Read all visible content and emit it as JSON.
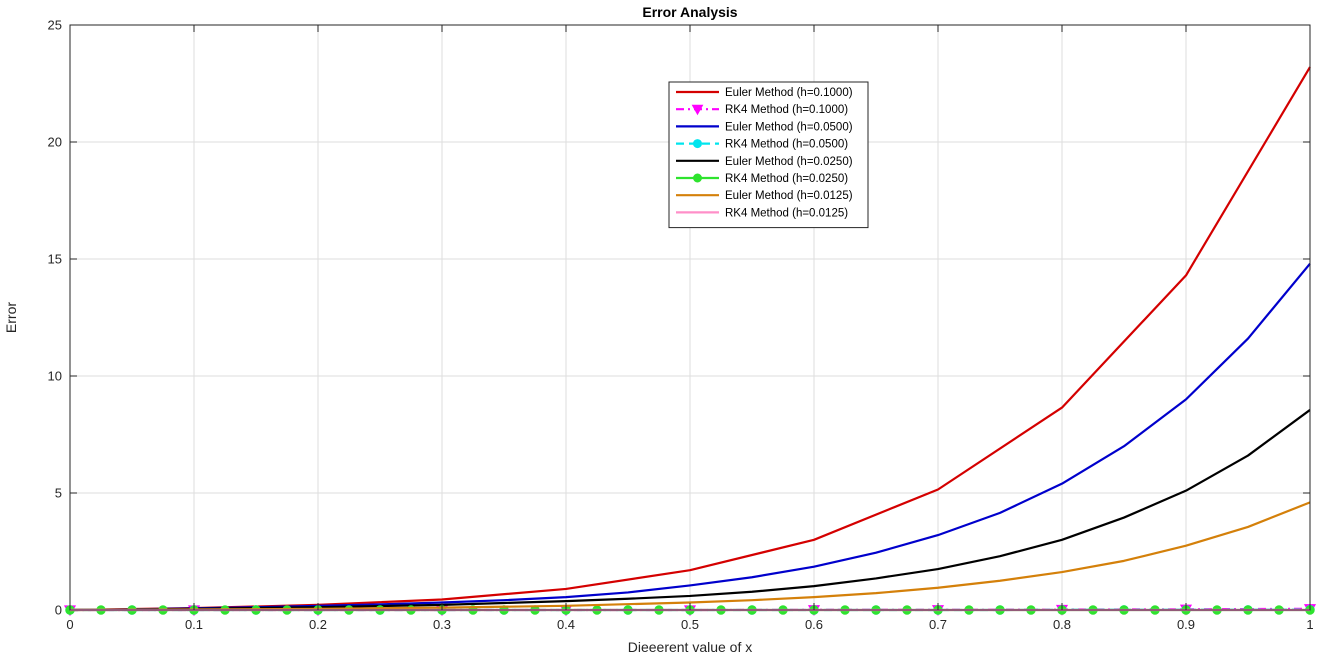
{
  "chart_data": {
    "type": "line",
    "title": "Error Analysis",
    "xlabel": "Dieeerent value of x",
    "ylabel": "Error",
    "xlim": [
      0,
      1
    ],
    "ylim": [
      0,
      25
    ],
    "xticks": [
      "0",
      "0.1",
      "0.2",
      "0.3",
      "0.4",
      "0.5",
      "0.6",
      "0.7",
      "0.8",
      "0.9",
      "1"
    ],
    "yticks": [
      "0",
      "5",
      "10",
      "15",
      "20",
      "25"
    ],
    "grid": true,
    "legend_position": "top-center",
    "series": [
      {
        "name": "Euler Method (h=0.1000)",
        "color": "#d40000",
        "style": "solid",
        "marker": "none",
        "x": [
          0,
          0.1,
          0.2,
          0.3,
          0.4,
          0.5,
          0.6,
          0.7,
          0.8,
          0.9,
          1.0
        ],
        "y": [
          0,
          0.08,
          0.22,
          0.45,
          0.9,
          1.7,
          3.0,
          5.15,
          8.65,
          14.3,
          23.2
        ]
      },
      {
        "name": "RK4 Method (h=0.1000)",
        "color": "#ff00ff",
        "style": "dashdot",
        "marker": "triangle-down",
        "x": [
          0,
          0.1,
          0.2,
          0.3,
          0.4,
          0.5,
          0.6,
          0.7,
          0.8,
          0.9,
          1.0
        ],
        "y": [
          0,
          0,
          0,
          0,
          0,
          0,
          0.01,
          0.01,
          0.02,
          0.03,
          0.05
        ]
      },
      {
        "name": "Euler Method (h=0.0500)",
        "color": "#0000cc",
        "style": "solid",
        "marker": "none",
        "x": [
          0,
          0.05,
          0.1,
          0.15,
          0.2,
          0.25,
          0.3,
          0.35,
          0.4,
          0.45,
          0.5,
          0.55,
          0.6,
          0.65,
          0.7,
          0.75,
          0.8,
          0.85,
          0.9,
          0.95,
          1.0
        ],
        "y": [
          0,
          0.03,
          0.07,
          0.12,
          0.18,
          0.24,
          0.32,
          0.42,
          0.55,
          0.75,
          1.05,
          1.4,
          1.85,
          2.45,
          3.2,
          4.15,
          5.4,
          7.0,
          9.0,
          11.6,
          14.8
        ]
      },
      {
        "name": "RK4 Method (h=0.0500)",
        "color": "#00e5ee",
        "style": "dashed",
        "marker": "circle",
        "x": [
          0,
          0.05,
          0.1,
          0.15,
          0.2,
          0.25,
          0.3,
          0.35,
          0.4,
          0.45,
          0.5,
          0.55,
          0.6,
          0.65,
          0.7,
          0.75,
          0.8,
          0.85,
          0.9,
          0.95,
          1.0
        ],
        "y": [
          0,
          0,
          0,
          0,
          0,
          0,
          0,
          0,
          0,
          0,
          0,
          0,
          0,
          0,
          0,
          0,
          0.01,
          0.01,
          0.01,
          0.01,
          0.02
        ]
      },
      {
        "name": "Euler Method (h=0.0250)",
        "color": "#000000",
        "style": "solid",
        "marker": "none",
        "x": [
          0,
          0.1,
          0.2,
          0.3,
          0.35,
          0.4,
          0.45,
          0.5,
          0.55,
          0.6,
          0.65,
          0.7,
          0.75,
          0.8,
          0.85,
          0.9,
          0.95,
          1.0
        ],
        "y": [
          0,
          0.05,
          0.12,
          0.22,
          0.3,
          0.38,
          0.48,
          0.6,
          0.78,
          1.02,
          1.35,
          1.75,
          2.3,
          3.0,
          3.95,
          5.1,
          6.6,
          8.55
        ]
      },
      {
        "name": "RK4 Method (h=0.0250)",
        "color": "#2ee32e",
        "style": "solid",
        "marker": "circle",
        "x": [
          0,
          0.025,
          0.05,
          0.075,
          0.1,
          0.125,
          0.15,
          0.175,
          0.2,
          0.225,
          0.25,
          0.275,
          0.3,
          0.325,
          0.35,
          0.375,
          0.4,
          0.425,
          0.45,
          0.475,
          0.5,
          0.525,
          0.55,
          0.575,
          0.6,
          0.625,
          0.65,
          0.675,
          0.7,
          0.725,
          0.75,
          0.775,
          0.8,
          0.825,
          0.85,
          0.875,
          0.9,
          0.925,
          0.95,
          0.975,
          1.0
        ],
        "y": [
          0,
          0,
          0,
          0,
          0,
          0,
          0,
          0,
          0,
          0,
          0,
          0,
          0,
          0,
          0,
          0,
          0,
          0,
          0,
          0,
          0,
          0,
          0,
          0,
          0,
          0,
          0,
          0,
          0,
          0,
          0,
          0,
          0,
          0,
          0,
          0,
          0,
          0,
          0,
          0,
          0
        ]
      },
      {
        "name": "Euler Method (h=0.0125)",
        "color": "#d4800a",
        "style": "solid",
        "marker": "none",
        "x": [
          0,
          0.1,
          0.2,
          0.3,
          0.4,
          0.5,
          0.55,
          0.6,
          0.65,
          0.7,
          0.75,
          0.8,
          0.85,
          0.9,
          0.95,
          1.0
        ],
        "y": [
          0,
          0.02,
          0.05,
          0.1,
          0.18,
          0.32,
          0.42,
          0.55,
          0.72,
          0.95,
          1.25,
          1.62,
          2.1,
          2.75,
          3.55,
          4.6
        ]
      },
      {
        "name": "RK4 Method (h=0.0125)",
        "color": "#ff8fc8",
        "style": "solid",
        "marker": "none",
        "x": [
          0,
          0.2,
          0.4,
          0.6,
          0.8,
          1.0
        ],
        "y": [
          0,
          0,
          0,
          0,
          0,
          0
        ]
      }
    ]
  }
}
